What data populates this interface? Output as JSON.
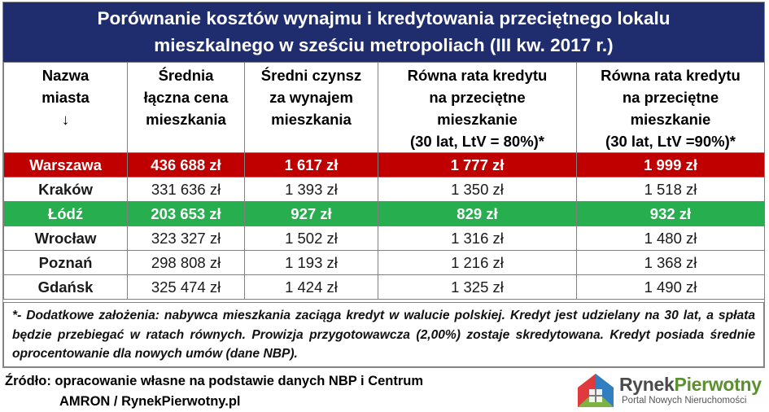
{
  "title": {
    "line1": "Porównanie kosztów wynajmu i kredytowania przeciętnego lokalu",
    "line2": "mieszkalnego w sześciu metropoliach (III kw. 2017 r.)"
  },
  "headers": [
    [
      "Nazwa",
      "miasta",
      "↓"
    ],
    [
      "Średnia",
      "łączna cena",
      "mieszkania"
    ],
    [
      "Średni czynsz",
      "za wynajem",
      "mieszkania"
    ],
    [
      "Równa rata kredytu",
      "na przeciętne",
      "mieszkanie",
      "(30 lat, LtV = 80%)*"
    ],
    [
      "Równa rata kredytu",
      "na przeciętne",
      "mieszkanie",
      "(30 lat, LtV =90%)*"
    ]
  ],
  "rows": [
    {
      "city": "Warszawa",
      "price": "436 688 zł",
      "rent": "1 617 zł",
      "rate80": "1 777 zł",
      "rate90": "1 999 zł",
      "highlight": "red"
    },
    {
      "city": "Kraków",
      "price": "331 636 zł",
      "rent": "1 393 zł",
      "rate80": "1 350 zł",
      "rate90": "1 518 zł",
      "highlight": ""
    },
    {
      "city": "Łódź",
      "price": "203 653 zł",
      "rent": "927 zł",
      "rate80": "829 zł",
      "rate90": "932 zł",
      "highlight": "green"
    },
    {
      "city": "Wrocław",
      "price": "323 327 zł",
      "rent": "1 502 zł",
      "rate80": "1 316 zł",
      "rate90": "1 480 zł",
      "highlight": ""
    },
    {
      "city": "Poznań",
      "price": "298 808 zł",
      "rent": "1 193 zł",
      "rate80": "1 216 zł",
      "rate90": "1 368 zł",
      "highlight": ""
    },
    {
      "city": "Gdańsk",
      "price": "325 474 zł",
      "rent": "1 424 zł",
      "rate80": "1 325 zł",
      "rate90": "1 490 zł",
      "highlight": ""
    }
  ],
  "note": "*- Dodatkowe założenia: nabywca mieszkania zaciąga kredyt w walucie polskiej. Kredyt jest udzielany na 30 lat, a spłata będzie przebiegać w ratach równych. Prowizja przygotowawcza (2,00%) zostaje skredytowana. Kredyt posiada średnie oprocentowanie dla nowych umów (dane NBP).",
  "source": {
    "line1": "Źródło: opracowanie własne na podstawie danych NBP i Centrum",
    "line2": "AMRON / RynekPierwotny.pl"
  },
  "logo": {
    "name_part1": "Rynek",
    "name_part2": "Pierwotny",
    "subtitle": "Portal Nowych Nieruchomości",
    "icon": "house-logo-icon"
  },
  "colors": {
    "title_bg": "#1f2c6d",
    "highlight_red": "#c00000",
    "highlight_green": "#27ae4f"
  }
}
